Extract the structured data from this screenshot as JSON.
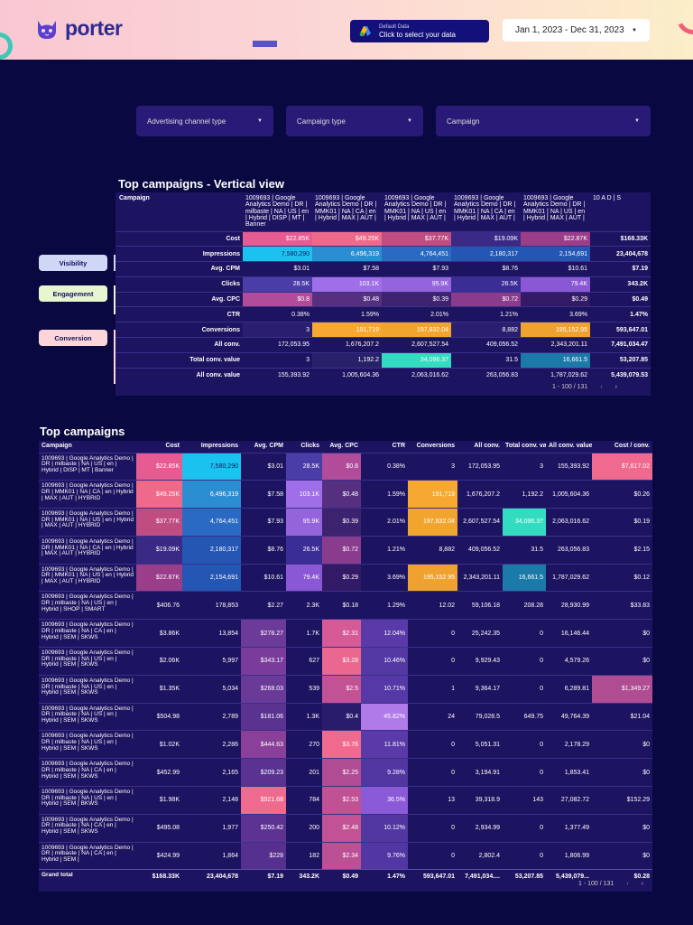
{
  "header": {
    "logo_text": "porter",
    "datasource_line1": "Default Data",
    "datasource_line2": "Click to select your data",
    "date_range": "Jan 1, 2023 - Dec 31, 2023"
  },
  "filters": [
    "Advertising channel type",
    "Campaign type",
    "Campaign"
  ],
  "vertical": {
    "title": "Top campaigns - Vertical view",
    "corner": "Campaign",
    "columns": [
      "1009693 | Google Analytics Demo | DR | milbaste | NA | US | en | Hybrid | DISP | MT | Banner",
      "1009693 | Google Analytics Demo | DR | MMK01 | NA | CA | en | Hybrid | MAX | AUT |",
      "1009693 | Google Analytics Demo | DR | MMK01 | NA | US | en | Hybrid | MAX | AUT |",
      "1009693 | Google Analytics Demo | DR | MMK01 | NA | CA | en | Hybrid | MAX | AUT |",
      "1009693 | Google Analytics Demo | DR | MMK01 | NA | US | en | Hybrid | MAX | AUT |",
      "10 A D | S"
    ],
    "rows": [
      {
        "label": "Cost",
        "cells": [
          "$22.85K",
          "$49.25K",
          "$37.77K",
          "$19.09K",
          "$22.87K"
        ],
        "total": "$168.33K"
      },
      {
        "label": "Impressions",
        "cells": [
          "7,580,290",
          "6,496,319",
          "4,764,451",
          "2,180,317",
          "2,154,691"
        ],
        "total": "23,404,678"
      },
      {
        "label": "Avg. CPM",
        "cells": [
          "$3.01",
          "$7.58",
          "$7.93",
          "$8.76",
          "$10.61"
        ],
        "total": "$7.19"
      },
      {
        "label": "Clicks",
        "cells": [
          "28.5K",
          "103.1K",
          "95.9K",
          "26.5K",
          "79.4K"
        ],
        "total": "343.2K"
      },
      {
        "label": "Avg. CPC",
        "cells": [
          "$0.8",
          "$0.48",
          "$0.39",
          "$0.72",
          "$0.29"
        ],
        "total": "$0.49"
      },
      {
        "label": "CTR",
        "cells": [
          "0.38%",
          "1.59%",
          "2.01%",
          "1.21%",
          "3.69%"
        ],
        "total": "1.47%"
      },
      {
        "label": "Conversions",
        "cells": [
          "3",
          "191,719",
          "197,832.04",
          "8,882",
          "195,152.95"
        ],
        "total": "593,647.01"
      },
      {
        "label": "All conv.",
        "cells": [
          "172,053.95",
          "1,676,207.2",
          "2,607,527.54",
          "409,056.52",
          "2,343,201.11"
        ],
        "total": "7,491,034.47"
      },
      {
        "label": "Total conv. value",
        "cells": [
          "3",
          "1,192.2",
          "34,096.37",
          "31.5",
          "16,661.5"
        ],
        "total": "53,207.85"
      },
      {
        "label": "All conv. value",
        "cells": [
          "155,393.92",
          "1,005,604.36",
          "2,063,016.62",
          "263,056.83",
          "1,787,029.62"
        ],
        "total": "5,439,079.53"
      }
    ],
    "pager": "1 - 100 / 131"
  },
  "side_labels": [
    "Visibility",
    "Engagement",
    "Conversion"
  ],
  "table": {
    "title": "Top campaigns",
    "headers": [
      "Campaign",
      "Cost",
      "Impressions",
      "Avg. CPM",
      "Clicks",
      "Avg. CPC",
      "CTR",
      "Conversions",
      "All conv.",
      "Total conv. value",
      "All conv. value",
      "Cost / conv."
    ],
    "rows": [
      {
        "name": "1009693 | Google Analytics Demo | DR | milbaste | NA | US | en | Hybrid | DISP | MT | Banner",
        "cells": [
          "$22.85K",
          "7,580,290",
          "$3.01",
          "28.5K",
          "$0.8",
          "0.38%",
          "3",
          "172,053.95",
          "3",
          "155,393.92",
          "$7,617.02"
        ]
      },
      {
        "name": "1009693 | Google Analytics Demo | DR | MMK01 | NA | CA | en | Hybrid | MAX | AUT | HYBRID",
        "cells": [
          "$49.25K",
          "6,496,319",
          "$7.58",
          "103.1K",
          "$0.48",
          "1.59%",
          "191,719",
          "1,676,207.2",
          "1,192.2",
          "1,005,604.36",
          "$0.26"
        ]
      },
      {
        "name": "1009693 | Google Analytics Demo | DR | MMK01 | NA | US | en | Hybrid | MAX | AUT | HYBRID",
        "cells": [
          "$37.77K",
          "4,764,451",
          "$7.93",
          "95.9K",
          "$0.39",
          "2.01%",
          "197,832.04",
          "2,607,527.54",
          "34,096.37",
          "2,063,016.62",
          "$0.19"
        ]
      },
      {
        "name": "1009693 | Google Analytics Demo | DR | MMK01 | NA | CA | en | Hybrid | MAX | AUT | HYBRID",
        "cells": [
          "$19.09K",
          "2,180,317",
          "$8.76",
          "26.5K",
          "$0.72",
          "1.21%",
          "8,882",
          "409,056.52",
          "31.5",
          "263,056.83",
          "$2.15"
        ]
      },
      {
        "name": "1009693 | Google Analytics Demo | DR | MMK01 | NA | US | en | Hybrid | MAX | AUT | HYBRID",
        "cells": [
          "$22.87K",
          "2,154,691",
          "$10.61",
          "79.4K",
          "$0.29",
          "3.69%",
          "195,152.95",
          "2,343,201.11",
          "16,661.5",
          "1,787,029.62",
          "$0.12"
        ]
      },
      {
        "name": "1009693 | Google Analytics Demo | DR | milbaste | NA | US | en | Hybrid | SHOP | SMART",
        "cells": [
          "$406.76",
          "178,853",
          "$2.27",
          "2.3K",
          "$0.18",
          "1.29%",
          "12.02",
          "59,106.18",
          "208.28",
          "28,930.99",
          "$33.83"
        ]
      },
      {
        "name": "1009693 | Google Analytics Demo | DR | milbaste | NA | CA | en | Hybrid | SEM | SKWS",
        "cells": [
          "$3.86K",
          "13,854",
          "$278.27",
          "1.7K",
          "$2.31",
          "12.04%",
          "0",
          "25,242.35",
          "0",
          "16,146.44",
          "$0"
        ]
      },
      {
        "name": "1009693 | Google Analytics Demo | DR | milbaste | NA | US | en | Hybrid | SEM | SKWS",
        "cells": [
          "$2.06K",
          "5,997",
          "$343.17",
          "627",
          "$3.28",
          "10.46%",
          "0",
          "9,929.43",
          "0",
          "4,579.26",
          "$0"
        ]
      },
      {
        "name": "1009693 | Google Analytics Demo | DR | milbaste | NA | US | en | Hybrid | SEM | SKWS",
        "cells": [
          "$1.35K",
          "5,034",
          "$268.03",
          "539",
          "$2.5",
          "10.71%",
          "1",
          "9,364.17",
          "0",
          "6,289.81",
          "$1,349.27"
        ]
      },
      {
        "name": "1009693 | Google Analytics Demo | DR | milbaste | NA | US | en | Hybrid | SEM | SKWS",
        "cells": [
          "$504.98",
          "2,789",
          "$181.06",
          "1.3K",
          "$0.4",
          "45.82%",
          "24",
          "79,028.5",
          "649.75",
          "49,764.39",
          "$21.04"
        ]
      },
      {
        "name": "1009693 | Google Analytics Demo | DR | milbaste | NA | US | en | Hybrid | SEM | SKWS",
        "cells": [
          "$1.02K",
          "2,286",
          "$444.63",
          "270",
          "$3.76",
          "11.81%",
          "0",
          "5,051.31",
          "0",
          "2,178.29",
          "$0"
        ]
      },
      {
        "name": "1009693 | Google Analytics Demo | DR | milbaste | NA | CA | en | Hybrid | SEM | SKWS",
        "cells": [
          "$452.99",
          "2,165",
          "$209.23",
          "201",
          "$2.25",
          "9.28%",
          "0",
          "3,194.91",
          "0",
          "1,853.41",
          "$0"
        ]
      },
      {
        "name": "1009693 | Google Analytics Demo | DR | milbaste | NA | US | en | Hybrid | SEM | BKWS",
        "cells": [
          "$1.98K",
          "2,148",
          "$921.68",
          "784",
          "$2.53",
          "36.5%",
          "13",
          "39,318.9",
          "143",
          "27,082.72",
          "$152.29"
        ]
      },
      {
        "name": "1009693 | Google Analytics Demo | DR | milbaste | NA | CA | en | Hybrid | SEM | SKWS",
        "cells": [
          "$495.08",
          "1,977",
          "$250.42",
          "200",
          "$2.48",
          "10.12%",
          "0",
          "2,934.99",
          "0",
          "1,377.49",
          "$0"
        ]
      },
      {
        "name": "1009693 | Google Analytics Demo | DR | milbaste | NA | CA | en | Hybrid | SEM |",
        "cells": [
          "$424.99",
          "1,864",
          "$228",
          "182",
          "$2.34",
          "9.76%",
          "0",
          "2,802.4",
          "0",
          "1,806.99",
          "$0"
        ]
      }
    ],
    "grand_total": {
      "label": "Grand total",
      "cells": [
        "$168.33K",
        "23,404,678",
        "$7.19",
        "343.2K",
        "$0.49",
        "1.47%",
        "593,647.01",
        "7,491,034....",
        "53,207.85",
        "5,439,079...",
        "$0.28"
      ]
    },
    "pager": "1 - 100 / 131"
  },
  "colors": {
    "background": "#090840",
    "panel": "#1c1460",
    "pink": "#f06a8f",
    "cyan": "#16c4f3",
    "purple": "#a06ee8",
    "orange": "#f6a830",
    "teal": "#33dcc0",
    "steel_blue": "#2456b4"
  }
}
